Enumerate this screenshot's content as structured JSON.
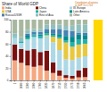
{
  "chart_data": [
    {
      "type": "bar",
      "stacked": true,
      "title": "Share of World GDP",
      "categories": [
        "1",
        "1000",
        "1500",
        "1600",
        "1700",
        "1820",
        "1870",
        "1913",
        "1950",
        "1973",
        "1998",
        "2003"
      ],
      "series": [
        {
          "name": "India",
          "color": "#f4a882",
          "values": [
            32.9,
            28.9,
            24.5,
            22.4,
            24.4,
            16.0,
            12.2,
            7.6,
            4.2,
            3.1,
            5.0,
            5.4
          ]
        },
        {
          "name": "China",
          "color": "#7b1010",
          "values": [
            26.2,
            22.7,
            24.9,
            29.0,
            22.3,
            32.9,
            17.2,
            8.9,
            4.5,
            4.6,
            11.5,
            15.1
          ]
        },
        {
          "name": "W. Europe",
          "color": "#add8e6",
          "values": [
            11.0,
            10.0,
            17.8,
            19.8,
            22.5,
            23.6,
            33.6,
            33.5,
            26.3,
            25.7,
            20.6,
            19.2
          ]
        },
        {
          "name": "USA",
          "color": "#e8c840",
          "values": [
            0.0,
            0.0,
            0.3,
            0.2,
            0.1,
            1.8,
            8.9,
            19.1,
            27.3,
            22.1,
            21.9,
            20.7
          ]
        },
        {
          "name": "Japan",
          "color": "#20b2aa",
          "values": [
            1.2,
            2.7,
            3.1,
            2.9,
            4.1,
            3.0,
            2.3,
            2.6,
            3.0,
            7.7,
            7.7,
            6.6
          ]
        },
        {
          "name": "Latin America",
          "color": "#008b8b",
          "values": [
            0.0,
            0.0,
            2.9,
            1.2,
            2.1,
            2.0,
            2.5,
            4.5,
            7.9,
            8.7,
            8.6,
            7.7
          ]
        },
        {
          "name": "Russia/USSR",
          "color": "#4682b4",
          "values": [
            0.0,
            0.0,
            3.4,
            4.0,
            4.4,
            5.4,
            7.6,
            8.6,
            9.6,
            9.4,
            3.4,
            3.8
          ]
        },
        {
          "name": "Rest of Asia",
          "color": "#90c0c0",
          "values": [
            6.0,
            7.0,
            6.0,
            5.0,
            5.0,
            7.0,
            7.0,
            7.0,
            6.9,
            8.7,
            13.4,
            13.4
          ]
        },
        {
          "name": "Other",
          "color": "#a8b8a0",
          "values": [
            22.7,
            28.7,
            17.1,
            15.5,
            15.1,
            8.3,
            8.7,
            8.2,
            10.3,
            10.0,
            7.9,
            8.1
          ]
        }
      ],
      "ylim": [
        0,
        100
      ],
      "yticks": [
        0,
        20,
        40,
        60,
        80,
        100
      ],
      "grid": true,
      "legend": "top"
    },
    {
      "type": "bar",
      "annotation": "Contribution of nations\nto GDP 3 in 1703",
      "categories": [
        null
      ],
      "values": [
        100
      ],
      "color": "#ffd700",
      "ylim": [
        0,
        100
      ],
      "tick_labels": false
    }
  ]
}
